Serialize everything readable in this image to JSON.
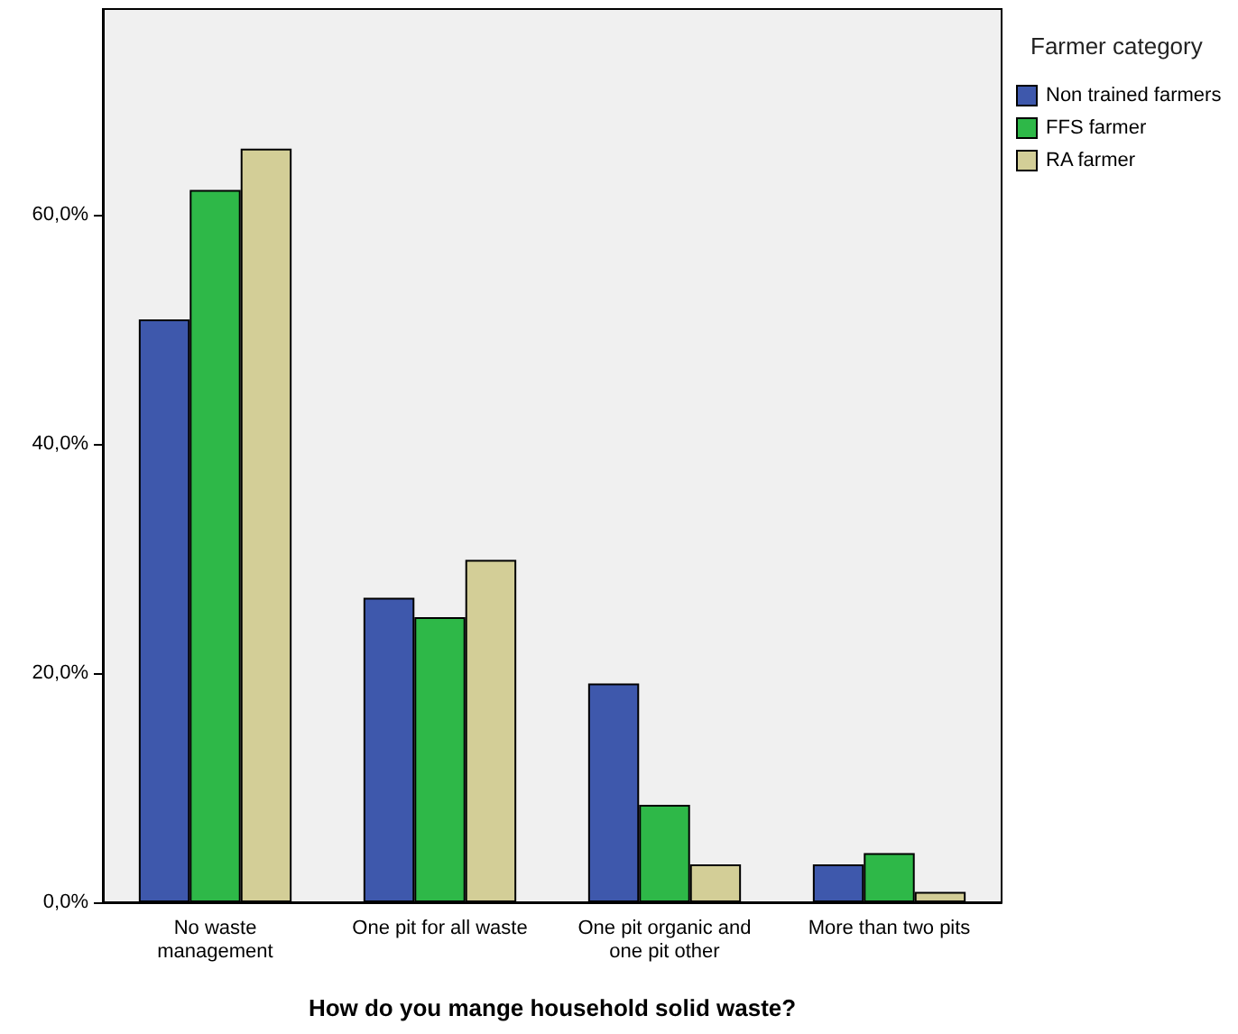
{
  "chart_data": {
    "type": "bar",
    "xlabel": "How do you mange household solid waste?",
    "legend_title": "Farmer category",
    "categories": [
      "No waste\nmanagement",
      "One pit for all waste",
      "One pit organic and\none pit other",
      "More than two pits"
    ],
    "series": [
      {
        "name": "Non trained farmers",
        "color": "#3e58ac",
        "values": [
          50.9,
          26.6,
          19.1,
          3.3
        ]
      },
      {
        "name": "FFS farmer",
        "color": "#2eb848",
        "values": [
          62.2,
          24.9,
          8.5,
          4.3
        ]
      },
      {
        "name": "RA farmer",
        "color": "#d3ce97",
        "values": [
          65.8,
          29.9,
          3.3,
          0.9
        ]
      }
    ],
    "ylim": [
      0,
      78
    ],
    "yticks": [
      {
        "value": 0,
        "label": "0,0%"
      },
      {
        "value": 20,
        "label": "20,0%"
      },
      {
        "value": 40,
        "label": "40,0%"
      },
      {
        "value": 60,
        "label": "60,0%"
      }
    ],
    "grid": false,
    "legend": "right"
  }
}
